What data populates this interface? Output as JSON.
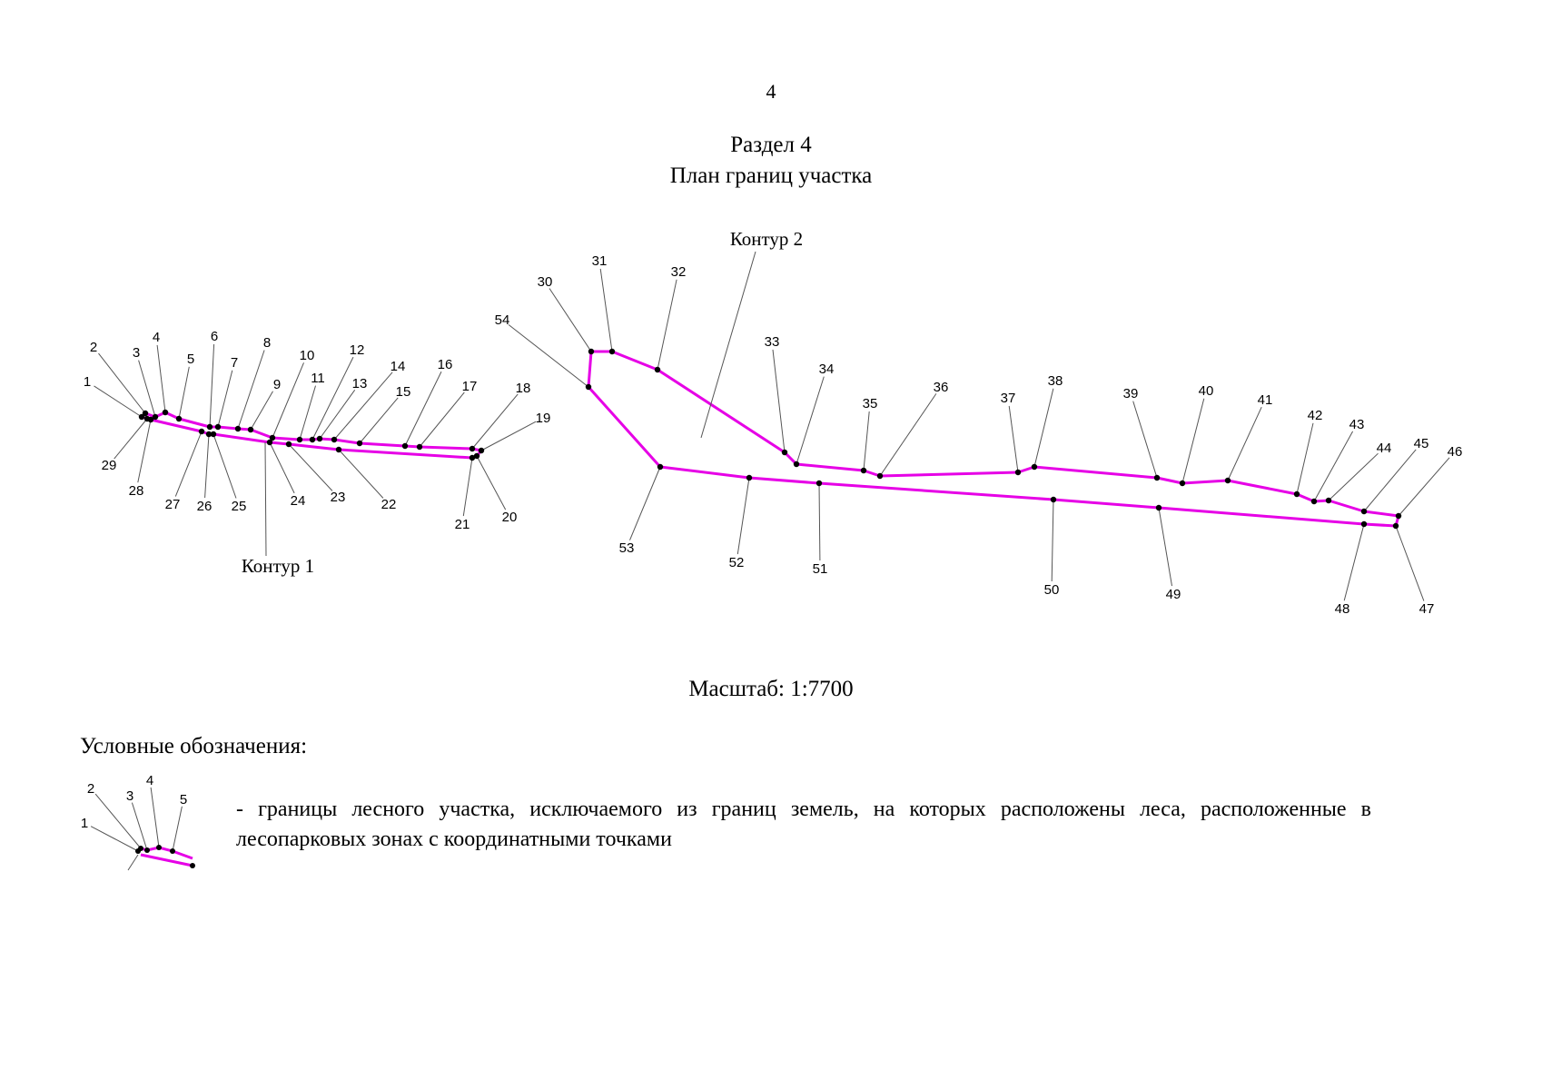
{
  "page_number": "4",
  "section_title": "Раздел 4",
  "plan_title": "План границ участка",
  "contours": [
    "Контур 1",
    "Контур 2"
  ],
  "scale": "Масштаб: 1:7700",
  "legend": {
    "heading": "Условные обозначения:",
    "sample_points": [
      "1",
      "2",
      "3",
      "4",
      "5"
    ],
    "description": "- границы лесного участка, исключаемого из границ земель, на которых расположены леса, расположенные в лесопарковых зонах с координатными точками"
  },
  "colors": {
    "boundary": "#e600e6",
    "points": "#000000",
    "leaders": "#555555"
  },
  "points": [
    "1",
    "2",
    "3",
    "4",
    "5",
    "6",
    "7",
    "8",
    "9",
    "10",
    "11",
    "12",
    "13",
    "14",
    "15",
    "16",
    "17",
    "18",
    "19",
    "20",
    "21",
    "22",
    "23",
    "24",
    "25",
    "26",
    "27",
    "28",
    "29",
    "30",
    "31",
    "32",
    "33",
    "34",
    "35",
    "36",
    "37",
    "38",
    "39",
    "40",
    "41",
    "42",
    "43",
    "44",
    "45",
    "46",
    "47",
    "48",
    "49",
    "50",
    "51",
    "52",
    "53",
    "54"
  ]
}
